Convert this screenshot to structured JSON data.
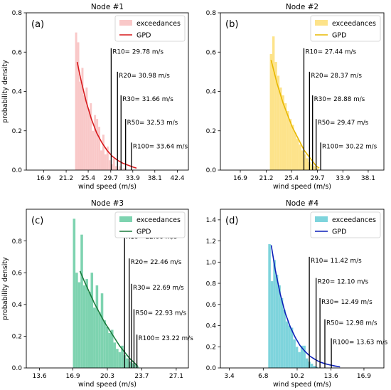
{
  "chart_data": [
    {
      "type": "bar",
      "title": "Node #1",
      "panel_label": "(a)",
      "xlabel": "wind speed (m/s)",
      "ylabel": "probability density",
      "xlim": [
        13.6,
        44.5
      ],
      "ylim": [
        0,
        0.8
      ],
      "xticks": [
        "16.9",
        "21.2",
        "25.4",
        "29.7",
        "33.9",
        "38.1",
        "42.4"
      ],
      "yticks": [
        "0.0",
        "0.2",
        "0.4",
        "0.6",
        "0.8"
      ],
      "legend": {
        "position": "top-right",
        "entries": [
          "exceedances",
          "GPD"
        ]
      },
      "histogram": {
        "color": "#f9c8c8",
        "bins": [
          {
            "x0": 22.9,
            "x1": 23.3,
            "y": 0.7
          },
          {
            "x0": 23.3,
            "x1": 23.7,
            "y": 0.65
          },
          {
            "x0": 23.7,
            "x1": 24.1,
            "y": 0.45
          },
          {
            "x0": 24.1,
            "x1": 24.5,
            "y": 0.52
          },
          {
            "x0": 24.5,
            "x1": 24.9,
            "y": 0.38
          },
          {
            "x0": 24.9,
            "x1": 25.3,
            "y": 0.42
          },
          {
            "x0": 25.3,
            "x1": 25.7,
            "y": 0.31
          },
          {
            "x0": 25.7,
            "x1": 26.1,
            "y": 0.34
          },
          {
            "x0": 26.1,
            "x1": 26.5,
            "y": 0.2
          },
          {
            "x0": 26.5,
            "x1": 26.9,
            "y": 0.28
          },
          {
            "x0": 26.9,
            "x1": 27.3,
            "y": 0.26
          },
          {
            "x0": 27.3,
            "x1": 27.7,
            "y": 0.22
          },
          {
            "x0": 27.7,
            "x1": 28.1,
            "y": 0.1
          },
          {
            "x0": 28.1,
            "x1": 28.5,
            "y": 0.18
          },
          {
            "x0": 28.5,
            "x1": 28.9,
            "y": 0.08
          },
          {
            "x0": 28.9,
            "x1": 29.3,
            "y": 0.12
          },
          {
            "x0": 29.3,
            "x1": 29.7,
            "y": 0.05
          },
          {
            "x0": 29.7,
            "x1": 30.1,
            "y": 0.03
          },
          {
            "x0": 30.1,
            "x1": 30.5,
            "y": 0.06
          },
          {
            "x0": 30.5,
            "x1": 30.9,
            "y": 0.02
          },
          {
            "x0": 31.3,
            "x1": 31.7,
            "y": 0.02
          },
          {
            "x0": 32.1,
            "x1": 32.5,
            "y": 0.01
          }
        ]
      },
      "gpd_fit": {
        "color": "#d7191c",
        "x": [
          23.3,
          24.0,
          25.0,
          26.0,
          27.0,
          28.0,
          29.0,
          30.0,
          31.0,
          32.0,
          33.0,
          34.0,
          34.6
        ],
        "y": [
          0.55,
          0.46,
          0.35,
          0.26,
          0.19,
          0.14,
          0.1,
          0.07,
          0.05,
          0.035,
          0.025,
          0.015,
          0.01
        ]
      },
      "return_levels": [
        {
          "label": "R10",
          "value": 29.78,
          "text": "R10= 29.78 m/s",
          "height": 0.62
        },
        {
          "label": "R20",
          "value": 30.98,
          "text": "R20= 30.98 m/s",
          "height": 0.5
        },
        {
          "label": "R30",
          "value": 31.66,
          "text": "R30= 31.66 m/s",
          "height": 0.38
        },
        {
          "label": "R50",
          "value": 32.53,
          "text": "R50= 32.53 m/s",
          "height": 0.26
        },
        {
          "label": "R100",
          "value": 33.64,
          "text": "R100= 33.64 m/s",
          "height": 0.14
        }
      ]
    },
    {
      "type": "bar",
      "title": "Node #2",
      "panel_label": "(b)",
      "xlabel": "wind speed (m/s)",
      "ylabel": "",
      "xlim": [
        13.6,
        40.7
      ],
      "ylim": [
        0,
        0.8
      ],
      "xticks": [
        "16.9",
        "21.2",
        "25.4",
        "29.7",
        "33.9",
        "38.1"
      ],
      "yticks": [
        "0.0",
        "0.2",
        "0.4",
        "0.6",
        "0.8"
      ],
      "legend": {
        "position": "top-right",
        "entries": [
          "exceedances",
          "GPD"
        ]
      },
      "histogram": {
        "color": "#fde38a",
        "bins": [
          {
            "x0": 21.8,
            "x1": 22.2,
            "y": 0.59
          },
          {
            "x0": 22.2,
            "x1": 22.6,
            "y": 0.68
          },
          {
            "x0": 22.6,
            "x1": 23.0,
            "y": 0.55
          },
          {
            "x0": 23.0,
            "x1": 23.4,
            "y": 0.48
          },
          {
            "x0": 23.4,
            "x1": 23.8,
            "y": 0.42
          },
          {
            "x0": 23.8,
            "x1": 24.2,
            "y": 0.38
          },
          {
            "x0": 24.2,
            "x1": 24.6,
            "y": 0.34
          },
          {
            "x0": 24.6,
            "x1": 25.0,
            "y": 0.3
          },
          {
            "x0": 25.0,
            "x1": 25.4,
            "y": 0.26
          },
          {
            "x0": 25.4,
            "x1": 25.8,
            "y": 0.23
          },
          {
            "x0": 25.8,
            "x1": 26.2,
            "y": 0.19
          },
          {
            "x0": 26.2,
            "x1": 26.6,
            "y": 0.16
          },
          {
            "x0": 26.6,
            "x1": 27.0,
            "y": 0.13
          },
          {
            "x0": 27.0,
            "x1": 27.4,
            "y": 0.1
          },
          {
            "x0": 27.4,
            "x1": 27.8,
            "y": 0.08
          },
          {
            "x0": 27.8,
            "x1": 28.2,
            "y": 0.06
          },
          {
            "x0": 28.2,
            "x1": 28.6,
            "y": 0.04
          },
          {
            "x0": 28.6,
            "x1": 29.0,
            "y": 0.03
          },
          {
            "x0": 29.0,
            "x1": 29.4,
            "y": 0.02
          },
          {
            "x0": 29.4,
            "x1": 29.8,
            "y": 0.01
          }
        ]
      },
      "gpd_fit": {
        "color": "#e8b800",
        "x": [
          22.0,
          22.5,
          23.0,
          23.5,
          24.0,
          24.5,
          25.0,
          25.5,
          26.0,
          26.5,
          27.0,
          27.5,
          28.0,
          28.5,
          29.0,
          29.5,
          30.0
        ],
        "y": [
          0.56,
          0.5,
          0.44,
          0.39,
          0.34,
          0.3,
          0.26,
          0.22,
          0.19,
          0.16,
          0.13,
          0.1,
          0.08,
          0.06,
          0.04,
          0.02,
          0.01
        ]
      },
      "return_levels": [
        {
          "label": "R10",
          "value": 27.44,
          "text": "R10= 27.44 m/s",
          "height": 0.62
        },
        {
          "label": "R20",
          "value": 28.37,
          "text": "R20= 28.37 m/s",
          "height": 0.5
        },
        {
          "label": "R30",
          "value": 28.88,
          "text": "R30= 28.88 m/s",
          "height": 0.38
        },
        {
          "label": "R50",
          "value": 29.47,
          "text": "R50= 29.47 m/s",
          "height": 0.26
        },
        {
          "label": "R100",
          "value": 30.22,
          "text": "R100= 30.22 m/s",
          "height": 0.14
        }
      ]
    },
    {
      "type": "bar",
      "title": "Node #3",
      "panel_label": "(c)",
      "xlabel": "wind speed (m/s)",
      "ylabel": "probability density",
      "xlim": [
        12.3,
        28.3
      ],
      "ylim": [
        0,
        1.0
      ],
      "xticks": [
        "13.6",
        "16.9",
        "20.3",
        "23.7",
        "27.1"
      ],
      "yticks": [
        "0.0",
        "0.2",
        "0.4",
        "0.6",
        "0.8"
      ],
      "legend": {
        "position": "top-right",
        "entries": [
          "exceedances",
          "GPD"
        ]
      },
      "histogram": {
        "color": "#7ed3b0",
        "bins": [
          {
            "x0": 16.9,
            "x1": 17.15,
            "y": 0.94
          },
          {
            "x0": 17.15,
            "x1": 17.4,
            "y": 0.6
          },
          {
            "x0": 17.4,
            "x1": 17.65,
            "y": 0.54
          },
          {
            "x0": 17.65,
            "x1": 17.9,
            "y": 0.84
          },
          {
            "x0": 17.9,
            "x1": 18.15,
            "y": 0.52
          },
          {
            "x0": 18.15,
            "x1": 18.4,
            "y": 0.56
          },
          {
            "x0": 18.4,
            "x1": 18.65,
            "y": 0.48
          },
          {
            "x0": 18.65,
            "x1": 18.9,
            "y": 0.6
          },
          {
            "x0": 18.9,
            "x1": 19.15,
            "y": 0.38
          },
          {
            "x0": 19.15,
            "x1": 19.4,
            "y": 0.52
          },
          {
            "x0": 19.4,
            "x1": 19.65,
            "y": 0.35
          },
          {
            "x0": 19.65,
            "x1": 19.9,
            "y": 0.47
          },
          {
            "x0": 19.9,
            "x1": 20.15,
            "y": 0.3
          },
          {
            "x0": 20.15,
            "x1": 20.4,
            "y": 0.26
          },
          {
            "x0": 20.4,
            "x1": 20.65,
            "y": 0.22
          },
          {
            "x0": 20.65,
            "x1": 20.9,
            "y": 0.24
          },
          {
            "x0": 20.9,
            "x1": 21.15,
            "y": 0.16
          },
          {
            "x0": 21.15,
            "x1": 21.4,
            "y": 0.12
          },
          {
            "x0": 21.4,
            "x1": 21.65,
            "y": 0.1
          },
          {
            "x0": 21.65,
            "x1": 21.9,
            "y": 0.14
          },
          {
            "x0": 21.9,
            "x1": 22.15,
            "y": 0.08
          },
          {
            "x0": 22.15,
            "x1": 22.4,
            "y": 0.06
          },
          {
            "x0": 22.4,
            "x1": 22.65,
            "y": 0.04
          },
          {
            "x0": 22.65,
            "x1": 22.9,
            "y": 0.03
          },
          {
            "x0": 22.9,
            "x1": 23.15,
            "y": 0.02
          },
          {
            "x0": 23.15,
            "x1": 23.4,
            "y": 0.01
          }
        ]
      },
      "gpd_fit": {
        "color": "#1a7a3c",
        "x": [
          17.6,
          18.0,
          18.5,
          19.0,
          19.5,
          20.0,
          20.5,
          21.0,
          21.5,
          22.0,
          22.5,
          23.0,
          23.3
        ],
        "y": [
          0.61,
          0.55,
          0.48,
          0.41,
          0.35,
          0.29,
          0.24,
          0.19,
          0.14,
          0.1,
          0.06,
          0.03,
          0.01
        ]
      },
      "return_levels": [
        {
          "label": "R10",
          "value": 22.0,
          "text": "R10= 22.00 m/s",
          "height": 0.85
        },
        {
          "label": "R20",
          "value": 22.46,
          "text": "R20= 22.46 m/s",
          "height": 0.69
        },
        {
          "label": "R30",
          "value": 22.69,
          "text": "R30= 22.69 m/s",
          "height": 0.53
        },
        {
          "label": "R50",
          "value": 22.93,
          "text": "R50= 22.93 m/s",
          "height": 0.37
        },
        {
          "label": "R100",
          "value": 23.22,
          "text": "R100= 23.22 m/s",
          "height": 0.21
        }
      ]
    },
    {
      "type": "bar",
      "title": "Node #4",
      "panel_label": "(d)",
      "xlabel": "wind speed (m/s)",
      "ylabel": "",
      "xlim": [
        2.5,
        18.9
      ],
      "ylim": [
        0,
        1.5
      ],
      "xticks": [
        "3.4",
        "6.8",
        "10.2",
        "13.6",
        "16.9"
      ],
      "yticks": [
        "0.0",
        "0.2",
        "0.4",
        "0.6",
        "0.8",
        "1.0",
        "1.2",
        "1.4"
      ],
      "legend": {
        "position": "top-right",
        "entries": [
          "exceedances",
          "GPD"
        ]
      },
      "histogram": {
        "color": "#7ed4dc",
        "bins": [
          {
            "x0": 7.3,
            "x1": 7.55,
            "y": 1.17
          },
          {
            "x0": 7.55,
            "x1": 7.8,
            "y": 0.82
          },
          {
            "x0": 7.8,
            "x1": 8.05,
            "y": 1.02
          },
          {
            "x0": 8.05,
            "x1": 8.3,
            "y": 0.88
          },
          {
            "x0": 8.3,
            "x1": 8.55,
            "y": 0.78
          },
          {
            "x0": 8.55,
            "x1": 8.8,
            "y": 0.66
          },
          {
            "x0": 8.8,
            "x1": 9.05,
            "y": 0.55
          },
          {
            "x0": 9.05,
            "x1": 9.3,
            "y": 0.44
          },
          {
            "x0": 9.3,
            "x1": 9.55,
            "y": 0.4
          },
          {
            "x0": 9.55,
            "x1": 9.8,
            "y": 0.38
          },
          {
            "x0": 9.8,
            "x1": 10.05,
            "y": 0.27
          },
          {
            "x0": 10.05,
            "x1": 10.3,
            "y": 0.2
          },
          {
            "x0": 10.3,
            "x1": 10.55,
            "y": 0.15
          },
          {
            "x0": 10.55,
            "x1": 10.8,
            "y": 0.21
          },
          {
            "x0": 10.8,
            "x1": 11.05,
            "y": 0.21
          },
          {
            "x0": 11.05,
            "x1": 11.3,
            "y": 0.09
          },
          {
            "x0": 11.3,
            "x1": 11.55,
            "y": 0.06
          },
          {
            "x0": 11.55,
            "x1": 11.8,
            "y": 0.04
          },
          {
            "x0": 11.8,
            "x1": 12.05,
            "y": 0.02
          },
          {
            "x0": 12.05,
            "x1": 12.3,
            "y": 0.01
          }
        ]
      },
      "gpd_fit": {
        "color": "#0b1fb8",
        "x": [
          7.6,
          8.0,
          8.5,
          9.0,
          9.5,
          10.0,
          10.5,
          11.0,
          11.5,
          12.0,
          12.5,
          13.0,
          13.5,
          14.0,
          14.5
        ],
        "y": [
          1.16,
          0.93,
          0.7,
          0.52,
          0.39,
          0.29,
          0.21,
          0.155,
          0.11,
          0.08,
          0.055,
          0.04,
          0.028,
          0.018,
          0.01
        ]
      },
      "return_levels": [
        {
          "label": "R10",
          "value": 11.42,
          "text": "R10= 11.42 m/s",
          "height": 1.05
        },
        {
          "label": "R20",
          "value": 12.1,
          "text": "R20= 12.10 m/s",
          "height": 0.85
        },
        {
          "label": "R30",
          "value": 12.49,
          "text": "R30= 12.49 m/s",
          "height": 0.66
        },
        {
          "label": "R50",
          "value": 12.98,
          "text": "R50= 12.98 m/s",
          "height": 0.46
        },
        {
          "label": "R100",
          "value": 13.63,
          "text": "R100= 13.63 m/s",
          "height": 0.28
        }
      ]
    }
  ]
}
